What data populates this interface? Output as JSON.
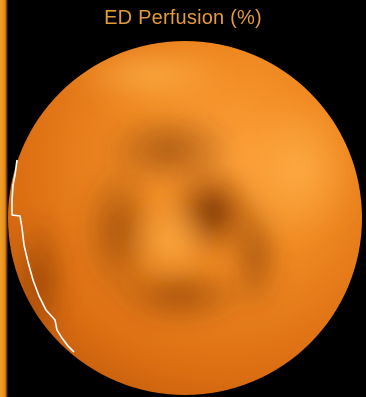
{
  "title": "ED Perfusion (%)",
  "colors": {
    "background": "#000000",
    "title_text": "#e59a3c",
    "map_light": "#ffa23a",
    "map_mid": "#e07010",
    "map_dark": "#6a2a00",
    "contour_line": "#ffffff",
    "left_bar": "#e88a10"
  }
}
